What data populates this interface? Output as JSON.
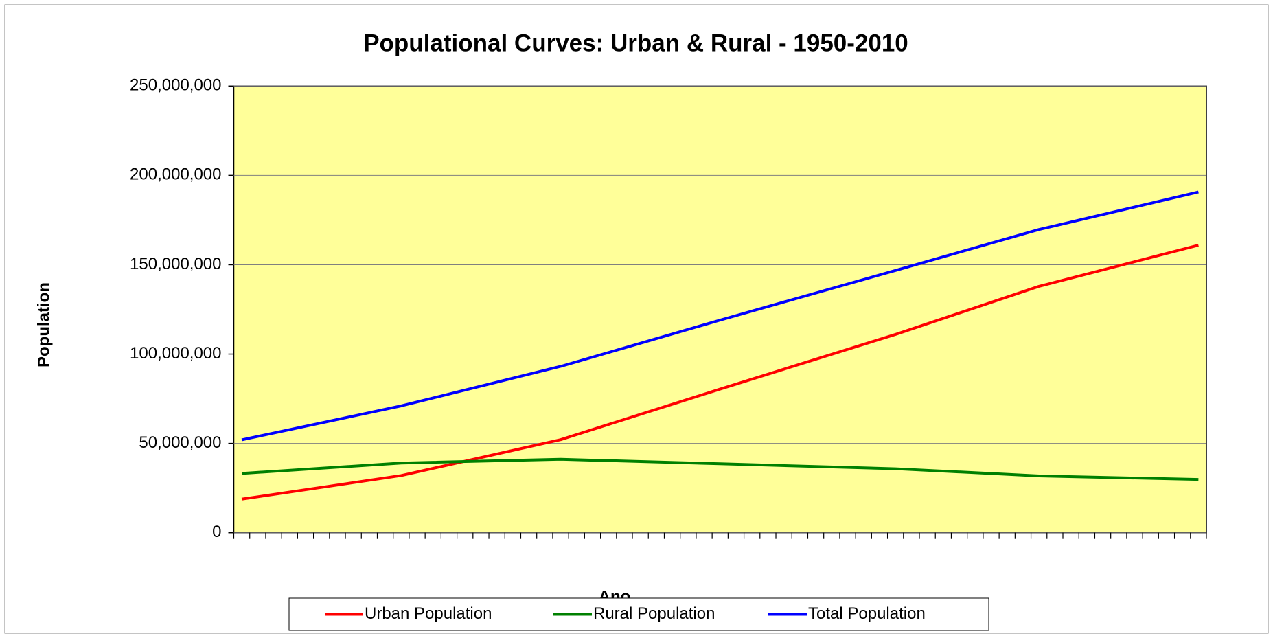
{
  "chart_data": {
    "type": "line",
    "title": "Populational Curves: Urban & Rural - 1950-2010",
    "x_label": "Ano",
    "y_label": "Population",
    "x": [
      1950,
      1960,
      1970,
      1980,
      1991,
      2000,
      2010
    ],
    "xlim": [
      1949.5,
      2010.5
    ],
    "series": [
      {
        "name": "Urban Population",
        "color": "#ff0000",
        "values": [
          18800000,
          32000000,
          52100000,
          80400000,
          111000000,
          137900000,
          160900000
        ]
      },
      {
        "name": "Rural Population",
        "color": "#008000",
        "values": [
          33200000,
          39000000,
          41100000,
          38600000,
          35800000,
          31800000,
          29800000
        ]
      },
      {
        "name": "Total Population",
        "color": "#0000ff",
        "values": [
          52000000,
          71000000,
          93100000,
          119000000,
          146800000,
          169700000,
          190700000
        ]
      }
    ],
    "ylim": [
      0,
      250000000
    ],
    "yticks": [
      0,
      {
        "value": 50000000,
        "label": "50,000,000"
      },
      {
        "value": 100000000,
        "label": "100,000,000"
      },
      {
        "value": 150000000,
        "label": "150,000,000"
      },
      {
        "value": 200000000,
        "label": "200,000,000"
      },
      {
        "value": 250000000,
        "label": "250,000,000"
      }
    ],
    "grid": true,
    "plot_background": "#ffff99",
    "legend": "bottom"
  }
}
